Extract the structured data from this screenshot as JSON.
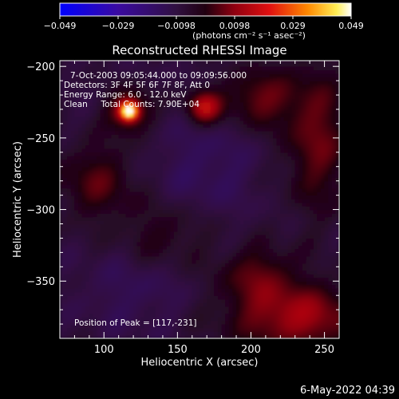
{
  "chart_data": {
    "type": "heatmap",
    "title": "Reconstructed RHESSI Image",
    "xlabel": "Heliocentric X (arcsec)",
    "ylabel": "Heliocentric Y (arcsec)",
    "xlim": [
      70,
      260
    ],
    "ylim": [
      -390,
      -196
    ],
    "x_ticks": [
      100,
      150,
      200,
      250
    ],
    "y_ticks": [
      -200,
      -250,
      -300,
      -350
    ],
    "colorbar": {
      "vmin": -0.049,
      "vmax": 0.049,
      "ticks": [
        "−0.049",
        "−0.029",
        "−0.0098",
        "0.0098",
        "0.029",
        "0.049"
      ],
      "unit_label": "(photons cm⁻² s⁻¹ asec⁻²)"
    },
    "annotations": [
      "7-Oct-2003 09:05:44.000 to 09:09:56.000",
      "Detectors: 3F 4F 5F 6F 7F 8F, Att 0",
      "Energy Range: 6.0 - 12.0 keV",
      "Clean     Total Counts: 7.90E+04"
    ],
    "peak_label": "Position of Peak = [117,-231]",
    "peak": {
      "x": 117,
      "y": -231
    },
    "timestamp": "6-May-2022 04:39",
    "sources": [
      {
        "x": 117,
        "y": -231,
        "amp": 0.049,
        "sx": 4,
        "sy": 4
      },
      {
        "x": 117,
        "y": -231,
        "amp": 0.02,
        "sx": 10,
        "sy": 10
      },
      {
        "x": 168,
        "y": -228,
        "amp": 0.024,
        "sx": 8,
        "sy": 8
      },
      {
        "x": 205,
        "y": -222,
        "amp": 0.014,
        "sx": 18,
        "sy": 14
      },
      {
        "x": 245,
        "y": -250,
        "amp": 0.014,
        "sx": 16,
        "sy": 35
      },
      {
        "x": 95,
        "y": -280,
        "amp": 0.012,
        "sx": 18,
        "sy": 18
      },
      {
        "x": 140,
        "y": -318,
        "amp": 0.008,
        "sx": 22,
        "sy": 16
      },
      {
        "x": 232,
        "y": -375,
        "amp": 0.02,
        "sx": 32,
        "sy": 16
      },
      {
        "x": 205,
        "y": -345,
        "amp": 0.012,
        "sx": 18,
        "sy": 14
      },
      {
        "x": 170,
        "y": -270,
        "amp": -0.006,
        "sx": 25,
        "sy": 25
      },
      {
        "x": 120,
        "y": -355,
        "amp": -0.005,
        "sx": 25,
        "sy": 22
      }
    ]
  }
}
